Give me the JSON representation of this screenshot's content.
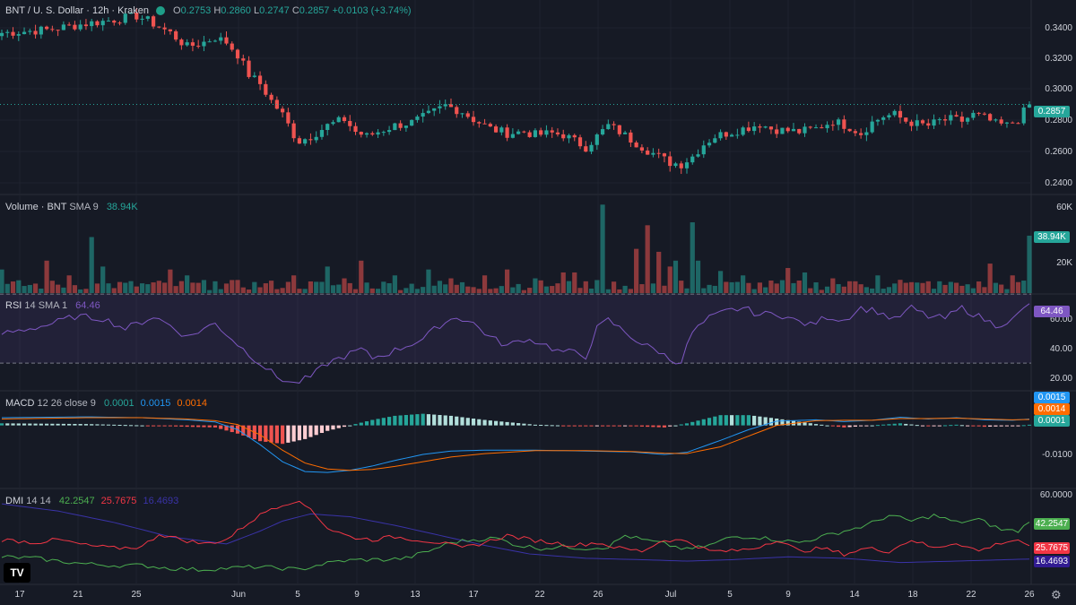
{
  "header": {
    "symbol": "BNT / U. S. Dollar · 12h · Kraken",
    "o_label": "O",
    "o_value": "0.2753",
    "h_label": "H",
    "h_value": "0.2860",
    "l_label": "L",
    "l_value": "0.2747",
    "c_label": "C",
    "c_value": "0.2857",
    "change": "+0.0103 (+3.74%)"
  },
  "price_axis": [
    "0.3400",
    "0.3200",
    "0.3000",
    "0.2800",
    "0.2600",
    "0.2400"
  ],
  "last_price": "0.2857",
  "volume": {
    "title": "Volume · BNT",
    "sma": "SMA 9",
    "value": "38.94K",
    "axis": [
      "60K",
      "20K"
    ],
    "tag": "38.94K"
  },
  "rsi": {
    "title": "RSI",
    "params": "14 SMA 1",
    "value": "64.46",
    "axis": [
      "60.00",
      "40.00",
      "20.00"
    ],
    "tag": "64.46"
  },
  "macd": {
    "title": "MACD",
    "params": "12 26 close 9",
    "hist": "0.0001",
    "macd": "0.0015",
    "signal": "0.0014",
    "axis": [
      "-0.0100"
    ],
    "tags": [
      "0.0015",
      "0.0014",
      "0.0001"
    ]
  },
  "dmi": {
    "title": "DMI",
    "params": "14 14",
    "plus": "42.2547",
    "minus": "25.7675",
    "adx": "16.4693",
    "axis": [
      "60.0000"
    ],
    "tags": [
      "42.2547",
      "25.7675",
      "16.4693"
    ]
  },
  "x_axis": [
    "17",
    "21",
    "25",
    "Jun",
    "5",
    "9",
    "13",
    "17",
    "22",
    "26",
    "Jul",
    "5",
    "9",
    "14",
    "18",
    "22",
    "26"
  ],
  "logo_text": "TV",
  "colors": {
    "up": "#26a69a",
    "down": "#ef5350",
    "rsi": "#7e57c2",
    "macd": "#2196f3",
    "signal": "#ff6d00",
    "plus_di": "#4caf50",
    "minus_di": "#f23645",
    "adx": "#311b92"
  },
  "chart_data": {
    "type": "candlestick",
    "close_anchors": [
      [
        0,
        0.332
      ],
      [
        8,
        0.334
      ],
      [
        15,
        0.338
      ],
      [
        19,
        0.34
      ],
      [
        24,
        0.343
      ],
      [
        26,
        0.34
      ],
      [
        30,
        0.332
      ],
      [
        33,
        0.323
      ],
      [
        36,
        0.326
      ],
      [
        38,
        0.329
      ],
      [
        40,
        0.326
      ],
      [
        42,
        0.318
      ],
      [
        44,
        0.305
      ],
      [
        46,
        0.299
      ],
      [
        48,
        0.288
      ],
      [
        50,
        0.279
      ],
      [
        52,
        0.266
      ],
      [
        53,
        0.262
      ],
      [
        55,
        0.265
      ],
      [
        58,
        0.272
      ],
      [
        61,
        0.276
      ],
      [
        63,
        0.268
      ],
      [
        65,
        0.265
      ],
      [
        67,
        0.268
      ],
      [
        70,
        0.272
      ],
      [
        73,
        0.274
      ],
      [
        76,
        0.279
      ],
      [
        79,
        0.285
      ],
      [
        82,
        0.281
      ],
      [
        84,
        0.276
      ],
      [
        87,
        0.27
      ],
      [
        90,
        0.267
      ],
      [
        93,
        0.268
      ],
      [
        95,
        0.266
      ],
      [
        98,
        0.267
      ],
      [
        100,
        0.266
      ],
      [
        102,
        0.262
      ],
      [
        104,
        0.258
      ],
      [
        106,
        0.265
      ],
      [
        108,
        0.272
      ],
      [
        110,
        0.268
      ],
      [
        112,
        0.263
      ],
      [
        115,
        0.256
      ],
      [
        117,
        0.252
      ],
      [
        119,
        0.248
      ],
      [
        121,
        0.247
      ],
      [
        123,
        0.252
      ],
      [
        125,
        0.26
      ],
      [
        127,
        0.265
      ],
      [
        130,
        0.268
      ],
      [
        133,
        0.271
      ],
      [
        135,
        0.273
      ],
      [
        137,
        0.27
      ],
      [
        139,
        0.269
      ],
      [
        142,
        0.268
      ],
      [
        145,
        0.27
      ],
      [
        148,
        0.275
      ],
      [
        151,
        0.271
      ],
      [
        153,
        0.267
      ],
      [
        155,
        0.274
      ],
      [
        157,
        0.278
      ],
      [
        159,
        0.279
      ],
      [
        161,
        0.275
      ],
      [
        163,
        0.273
      ],
      [
        165,
        0.272
      ],
      [
        167,
        0.275
      ],
      [
        169,
        0.276
      ],
      [
        171,
        0.275
      ],
      [
        173,
        0.279
      ],
      [
        175,
        0.277
      ],
      [
        177,
        0.273
      ],
      [
        179,
        0.272
      ],
      [
        181,
        0.276
      ],
      [
        183,
        0.2857
      ]
    ],
    "volume_range": [
      0,
      62000
    ],
    "rsi_anchors": [
      [
        0,
        47
      ],
      [
        8,
        52
      ],
      [
        13,
        57
      ],
      [
        18,
        56
      ],
      [
        22,
        50
      ],
      [
        25,
        54
      ],
      [
        27,
        57
      ],
      [
        30,
        52
      ],
      [
        33,
        45
      ],
      [
        36,
        50
      ],
      [
        38,
        53
      ],
      [
        40,
        47
      ],
      [
        43,
        38
      ],
      [
        46,
        30
      ],
      [
        49,
        22
      ],
      [
        52,
        18
      ],
      [
        55,
        22
      ],
      [
        58,
        30
      ],
      [
        61,
        34
      ],
      [
        64,
        38
      ],
      [
        66,
        33
      ],
      [
        69,
        36
      ],
      [
        72,
        40
      ],
      [
        75,
        44
      ],
      [
        78,
        52
      ],
      [
        81,
        57
      ],
      [
        84,
        53
      ],
      [
        87,
        45
      ],
      [
        90,
        40
      ],
      [
        93,
        44
      ],
      [
        96,
        42
      ],
      [
        99,
        37
      ],
      [
        102,
        36
      ],
      [
        104,
        34
      ],
      [
        106,
        50
      ],
      [
        108,
        55
      ],
      [
        111,
        48
      ],
      [
        114,
        41
      ],
      [
        117,
        37
      ],
      [
        119,
        32
      ],
      [
        121,
        31
      ],
      [
        123,
        48
      ],
      [
        126,
        56
      ],
      [
        129,
        60
      ],
      [
        132,
        62
      ],
      [
        135,
        58
      ],
      [
        138,
        59
      ],
      [
        141,
        55
      ],
      [
        144,
        52
      ],
      [
        147,
        57
      ],
      [
        150,
        55
      ],
      [
        153,
        62
      ],
      [
        156,
        60
      ],
      [
        159,
        55
      ],
      [
        162,
        62
      ],
      [
        165,
        57
      ],
      [
        168,
        56
      ],
      [
        171,
        62
      ],
      [
        174,
        57
      ],
      [
        177,
        52
      ],
      [
        180,
        55
      ],
      [
        183,
        64.46
      ]
    ],
    "rsi_range": [
      15,
      68
    ],
    "macd_anchors": [
      [
        0,
        0.0018
      ],
      [
        15,
        0.002
      ],
      [
        25,
        0.0018
      ],
      [
        33,
        0.0013
      ],
      [
        38,
        0.0008
      ],
      [
        42,
        -0.001
      ],
      [
        46,
        -0.0045
      ],
      [
        50,
        -0.0085
      ],
      [
        54,
        -0.0108
      ],
      [
        58,
        -0.011
      ],
      [
        62,
        -0.0105
      ],
      [
        66,
        -0.0095
      ],
      [
        70,
        -0.0082
      ],
      [
        75,
        -0.0068
      ],
      [
        80,
        -0.006
      ],
      [
        86,
        -0.0058
      ],
      [
        95,
        -0.0058
      ],
      [
        104,
        -0.006
      ],
      [
        112,
        -0.0062
      ],
      [
        118,
        -0.0068
      ],
      [
        122,
        -0.0063
      ],
      [
        128,
        -0.0035
      ],
      [
        133,
        -0.001
      ],
      [
        138,
        0.001
      ],
      [
        145,
        0.0013
      ],
      [
        150,
        0.0009
      ],
      [
        155,
        0.0012
      ],
      [
        160,
        0.0019
      ],
      [
        165,
        0.0015
      ],
      [
        170,
        0.0018
      ],
      [
        175,
        0.0013
      ],
      [
        180,
        0.0012
      ],
      [
        183,
        0.0015
      ]
    ],
    "signal_anchors": [
      [
        0,
        0.0015
      ],
      [
        15,
        0.0018
      ],
      [
        25,
        0.0018
      ],
      [
        33,
        0.0015
      ],
      [
        38,
        0.0011
      ],
      [
        42,
        0.0002
      ],
      [
        46,
        -0.0022
      ],
      [
        50,
        -0.0058
      ],
      [
        54,
        -0.0088
      ],
      [
        58,
        -0.0102
      ],
      [
        62,
        -0.0105
      ],
      [
        66,
        -0.0103
      ],
      [
        70,
        -0.0096
      ],
      [
        75,
        -0.0085
      ],
      [
        80,
        -0.0074
      ],
      [
        86,
        -0.0066
      ],
      [
        95,
        -0.0059
      ],
      [
        104,
        -0.0059
      ],
      [
        112,
        -0.0061
      ],
      [
        118,
        -0.0065
      ],
      [
        122,
        -0.0066
      ],
      [
        128,
        -0.005
      ],
      [
        133,
        -0.0025
      ],
      [
        138,
        0.0
      ],
      [
        145,
        0.0011
      ],
      [
        150,
        0.0012
      ],
      [
        155,
        0.0012
      ],
      [
        160,
        0.0016
      ],
      [
        165,
        0.0016
      ],
      [
        170,
        0.0017
      ],
      [
        175,
        0.0015
      ],
      [
        180,
        0.0013
      ],
      [
        183,
        0.0014
      ]
    ],
    "macd_range": [
      -0.0135,
      0.006
    ],
    "plus_di_anchors": [
      [
        0,
        18
      ],
      [
        6,
        17
      ],
      [
        10,
        15
      ],
      [
        15,
        13
      ],
      [
        20,
        12
      ],
      [
        25,
        12
      ],
      [
        30,
        10
      ],
      [
        35,
        9
      ],
      [
        40,
        10
      ],
      [
        45,
        11
      ],
      [
        50,
        10
      ],
      [
        53,
        9
      ],
      [
        56,
        12
      ],
      [
        60,
        15
      ],
      [
        64,
        16
      ],
      [
        68,
        16
      ],
      [
        72,
        17
      ],
      [
        76,
        22
      ],
      [
        80,
        28
      ],
      [
        84,
        30
      ],
      [
        88,
        31
      ],
      [
        92,
        26
      ],
      [
        96,
        24
      ],
      [
        100,
        25
      ],
      [
        104,
        24
      ],
      [
        108,
        25
      ],
      [
        111,
        33
      ],
      [
        114,
        30
      ],
      [
        118,
        27
      ],
      [
        122,
        23
      ],
      [
        126,
        26
      ],
      [
        130,
        32
      ],
      [
        134,
        32
      ],
      [
        138,
        30
      ],
      [
        142,
        28
      ],
      [
        146,
        32
      ],
      [
        150,
        36
      ],
      [
        154,
        40
      ],
      [
        158,
        47
      ],
      [
        162,
        43
      ],
      [
        166,
        47
      ],
      [
        170,
        42
      ],
      [
        174,
        44
      ],
      [
        178,
        37
      ],
      [
        181,
        36
      ],
      [
        183,
        42.25
      ]
    ],
    "minus_di_anchors": [
      [
        0,
        30
      ],
      [
        6,
        28
      ],
      [
        10,
        30
      ],
      [
        15,
        26
      ],
      [
        20,
        24
      ],
      [
        25,
        25
      ],
      [
        28,
        34
      ],
      [
        32,
        30
      ],
      [
        36,
        27
      ],
      [
        40,
        30
      ],
      [
        44,
        42
      ],
      [
        48,
        52
      ],
      [
        52,
        57
      ],
      [
        55,
        52
      ],
      [
        58,
        38
      ],
      [
        62,
        32
      ],
      [
        66,
        30
      ],
      [
        70,
        32
      ],
      [
        74,
        30
      ],
      [
        78,
        28
      ],
      [
        82,
        24
      ],
      [
        86,
        28
      ],
      [
        90,
        33
      ],
      [
        94,
        30
      ],
      [
        98,
        28
      ],
      [
        102,
        26
      ],
      [
        106,
        28
      ],
      [
        110,
        24
      ],
      [
        114,
        22
      ],
      [
        118,
        30
      ],
      [
        122,
        29
      ],
      [
        126,
        22
      ],
      [
        130,
        22
      ],
      [
        134,
        24
      ],
      [
        138,
        30
      ],
      [
        142,
        22
      ],
      [
        146,
        24
      ],
      [
        150,
        20
      ],
      [
        154,
        24
      ],
      [
        158,
        22
      ],
      [
        162,
        30
      ],
      [
        166,
        24
      ],
      [
        170,
        28
      ],
      [
        174,
        22
      ],
      [
        178,
        28
      ],
      [
        181,
        30
      ],
      [
        183,
        25.77
      ]
    ],
    "adx_anchors": [
      [
        0,
        55
      ],
      [
        10,
        50
      ],
      [
        20,
        42
      ],
      [
        30,
        32
      ],
      [
        40,
        27
      ],
      [
        46,
        36
      ],
      [
        50,
        43
      ],
      [
        55,
        48
      ],
      [
        62,
        46
      ],
      [
        70,
        40
      ],
      [
        78,
        33
      ],
      [
        86,
        26
      ],
      [
        94,
        20
      ],
      [
        104,
        17
      ],
      [
        114,
        16
      ],
      [
        122,
        15
      ],
      [
        130,
        16
      ],
      [
        140,
        18
      ],
      [
        150,
        17
      ],
      [
        160,
        14
      ],
      [
        170,
        15
      ],
      [
        183,
        16.47
      ]
    ],
    "di_range": [
      0,
      62
    ]
  }
}
